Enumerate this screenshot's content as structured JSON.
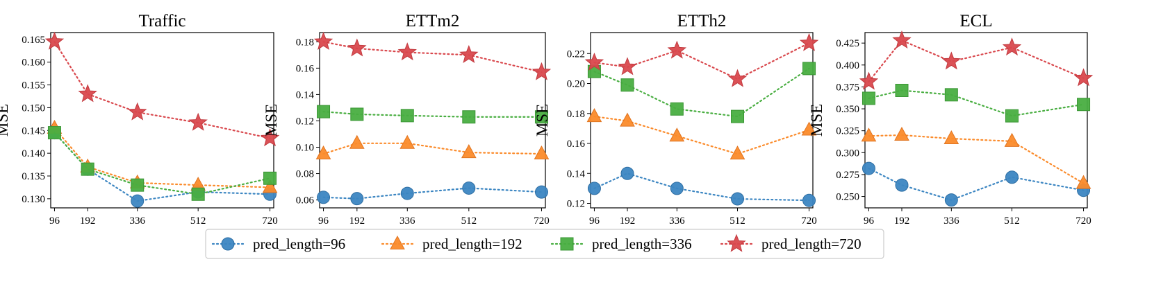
{
  "chart_data": [
    {
      "type": "line",
      "title": "Traffic",
      "xlabel": "",
      "ylabel": "MSE",
      "x": [
        96,
        192,
        336,
        512,
        720
      ],
      "xticks": [
        "96",
        "192",
        "336",
        "512",
        "720"
      ],
      "ylim": [
        0.128,
        0.1665
      ],
      "yticks": [
        "0.130",
        "0.135",
        "0.140",
        "0.145",
        "0.150",
        "0.155",
        "0.160",
        "0.165"
      ],
      "series": [
        {
          "name": "pred_length=96",
          "values": [
            0.1445,
            0.1365,
            0.1295,
            0.1315,
            0.131
          ]
        },
        {
          "name": "pred_length=192",
          "values": [
            0.1455,
            0.137,
            0.1335,
            0.133,
            0.1325
          ]
        },
        {
          "name": "pred_length=336",
          "values": [
            0.1445,
            0.1365,
            0.133,
            0.131,
            0.1345
          ]
        },
        {
          "name": "pred_length=720",
          "values": [
            0.1645,
            0.153,
            0.149,
            0.1467,
            0.1433
          ]
        }
      ]
    },
    {
      "type": "line",
      "title": "ETTm2",
      "xlabel": "",
      "ylabel": "MSE",
      "x": [
        96,
        192,
        336,
        512,
        720
      ],
      "xticks": [
        "96",
        "192",
        "336",
        "512",
        "720"
      ],
      "ylim": [
        0.054,
        0.187
      ],
      "yticks": [
        "0.06",
        "0.08",
        "0.10",
        "0.12",
        "0.14",
        "0.16",
        "0.18"
      ],
      "series": [
        {
          "name": "pred_length=96",
          "values": [
            0.062,
            0.061,
            0.065,
            0.069,
            0.066
          ]
        },
        {
          "name": "pred_length=192",
          "values": [
            0.095,
            0.103,
            0.103,
            0.096,
            0.095
          ]
        },
        {
          "name": "pred_length=336",
          "values": [
            0.127,
            0.125,
            0.124,
            0.123,
            0.123
          ]
        },
        {
          "name": "pred_length=720",
          "values": [
            0.18,
            0.175,
            0.172,
            0.17,
            0.157
          ]
        }
      ]
    },
    {
      "type": "line",
      "title": "ETTh2",
      "xlabel": "",
      "ylabel": "MSE",
      "x": [
        96,
        192,
        336,
        512,
        720
      ],
      "xticks": [
        "96",
        "192",
        "336",
        "512",
        "720"
      ],
      "ylim": [
        0.117,
        0.234
      ],
      "yticks": [
        "0.12",
        "0.14",
        "0.16",
        "0.18",
        "0.20",
        "0.22"
      ],
      "series": [
        {
          "name": "pred_length=96",
          "values": [
            0.13,
            0.14,
            0.13,
            0.123,
            0.122
          ]
        },
        {
          "name": "pred_length=192",
          "values": [
            0.178,
            0.175,
            0.165,
            0.153,
            0.169
          ]
        },
        {
          "name": "pred_length=336",
          "values": [
            0.208,
            0.199,
            0.183,
            0.178,
            0.21
          ]
        },
        {
          "name": "pred_length=720",
          "values": [
            0.214,
            0.211,
            0.222,
            0.203,
            0.227
          ]
        }
      ]
    },
    {
      "type": "line",
      "title": "ECL",
      "xlabel": "",
      "ylabel": "MSE",
      "x": [
        96,
        192,
        336,
        512,
        720
      ],
      "xticks": [
        "96",
        "192",
        "336",
        "512",
        "720"
      ],
      "ylim": [
        0.237,
        0.437
      ],
      "yticks": [
        "0.250",
        "0.275",
        "0.300",
        "0.325",
        "0.350",
        "0.375",
        "0.400",
        "0.425"
      ],
      "series": [
        {
          "name": "pred_length=96",
          "values": [
            0.282,
            0.263,
            0.246,
            0.272,
            0.257
          ]
        },
        {
          "name": "pred_length=192",
          "values": [
            0.319,
            0.32,
            0.316,
            0.313,
            0.265
          ]
        },
        {
          "name": "pred_length=336",
          "values": [
            0.362,
            0.371,
            0.366,
            0.342,
            0.355
          ]
        },
        {
          "name": "pred_length=720",
          "values": [
            0.381,
            0.428,
            0.404,
            0.42,
            0.385
          ]
        }
      ]
    }
  ],
  "legend": {
    "placement": "bottom-center",
    "items": [
      "pred_length=96",
      "pred_length=192",
      "pred_length=336",
      "pred_length=720"
    ]
  },
  "colors": {
    "series": [
      "#3c86c2",
      "#fb8b2b",
      "#49ae41",
      "#d9484d"
    ],
    "marker_edge": [
      "#2e6ea3",
      "#e07420",
      "#3a9534",
      "#c23a3f"
    ]
  },
  "markers": [
    "circle",
    "triangle",
    "square",
    "star"
  ]
}
